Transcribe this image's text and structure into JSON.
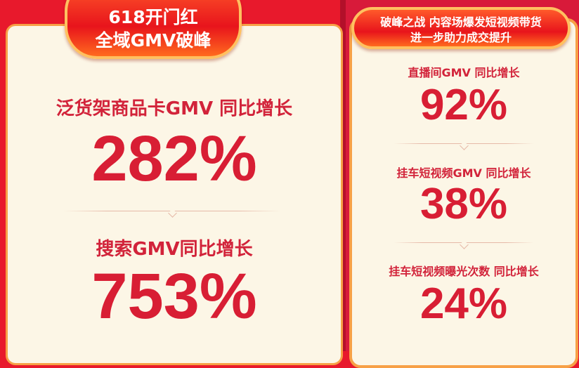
{
  "colors": {
    "background": "#e8192c",
    "card": "#fcf6e6",
    "accent": "#d81e34",
    "border": "#f7a046"
  },
  "left": {
    "title_lines": [
      "618开门红",
      "全域GMV破峰"
    ],
    "stats": [
      {
        "label": "泛货架商品卡GMV 同比增长",
        "value": "282%"
      },
      {
        "label": "搜索GMV同比增长",
        "value": "753%"
      }
    ]
  },
  "right": {
    "title_lines": [
      "破峰之战 内容场爆发短视频带货",
      "进一步助力成交提升"
    ],
    "stats": [
      {
        "label": "直播间GMV 同比增长",
        "value": "92%"
      },
      {
        "label": "挂车短视频GMV 同比增长",
        "value": "38%"
      },
      {
        "label": "挂车短视频曝光次数 同比增长",
        "value": "24%"
      }
    ]
  }
}
